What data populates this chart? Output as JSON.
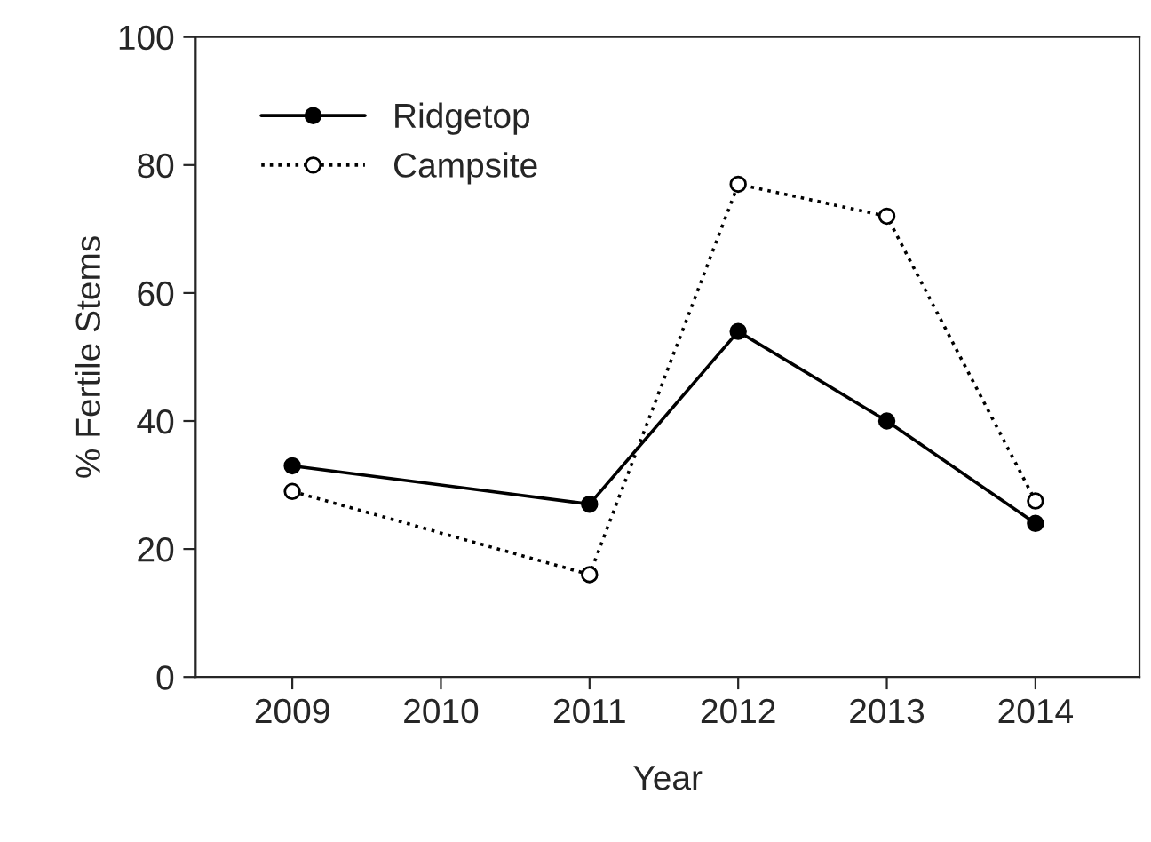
{
  "chart_data": {
    "type": "line",
    "xlabel": "Year",
    "ylabel": "% Fertile Stems",
    "x": [
      2009,
      2011,
      2012,
      2013,
      2014
    ],
    "series": [
      {
        "name": "Ridgetop",
        "color": "#000000",
        "values": [
          33,
          27,
          54,
          40,
          24
        ],
        "marker": "circle",
        "line_style": "solid"
      },
      {
        "name": "Campsite",
        "color": "#000000",
        "values": [
          29,
          16,
          77,
          72,
          27.5
        ],
        "marker": "circle",
        "line_style": "dotted"
      }
    ],
    "xlim": [
      2008.35,
      2014.7
    ],
    "xticks": [
      2009,
      2010,
      2011,
      2012,
      2013,
      2014
    ],
    "ylim": [
      0,
      100
    ],
    "yticks": [
      0,
      20,
      40,
      60,
      80,
      100
    ],
    "grid": false,
    "legend": "top left"
  }
}
